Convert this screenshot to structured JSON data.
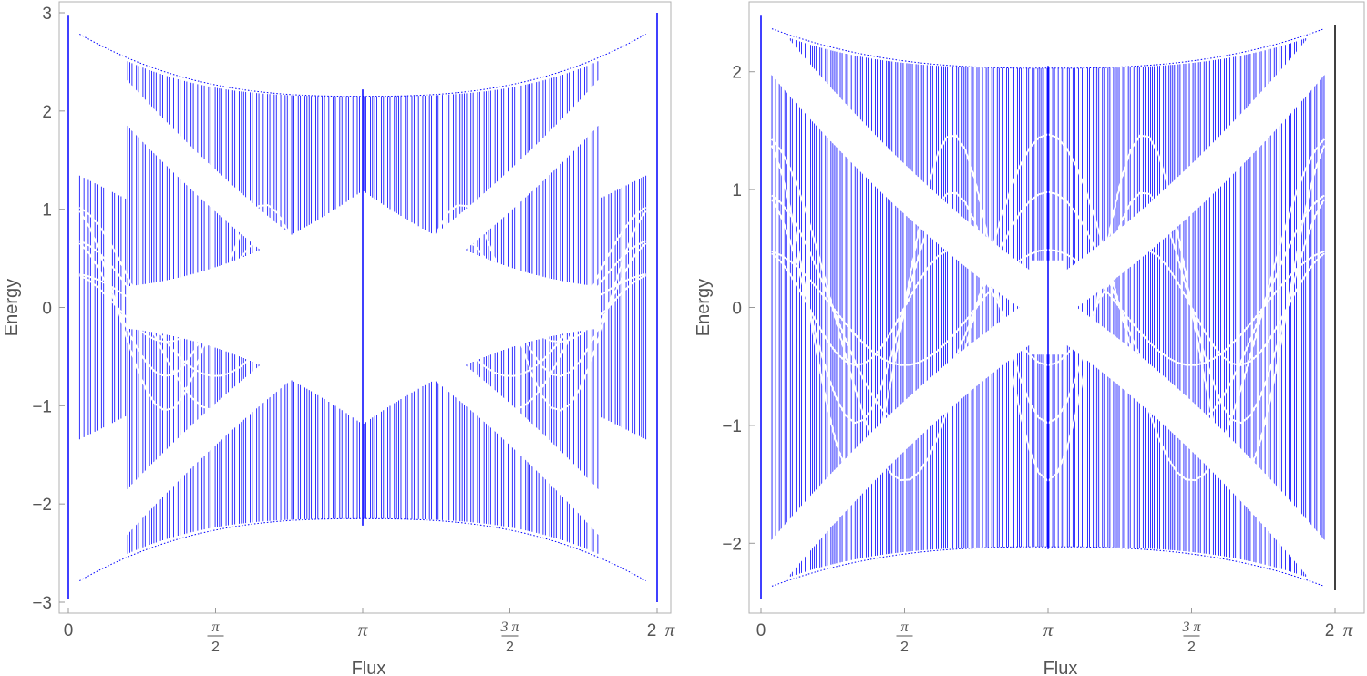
{
  "chart_data": [
    {
      "type": "scatter",
      "panel": "left",
      "title": "",
      "xlabel": "Flux",
      "ylabel": "Energy",
      "xlim": [
        0,
        6.2832
      ],
      "ylim": [
        -3,
        3
      ],
      "xticks": [
        "0",
        "π/2",
        "π",
        "3π/2",
        "2 π"
      ],
      "yticks": [
        "3",
        "2",
        "1",
        "0",
        "−1",
        "−2",
        "−3"
      ],
      "ytick_values": [
        3,
        2,
        1,
        0,
        -1,
        -2,
        -3
      ],
      "series_color": "#0000ff",
      "edge_band_max": 2.85,
      "center_gap_energy": 2.22,
      "description_bands": "Hofstadter-like spectrum with symmetric butterfly bands about Flux = π"
    },
    {
      "type": "scatter",
      "panel": "right",
      "title": "",
      "xlabel": "Flux",
      "ylabel": "Energy",
      "xlim": [
        0,
        6.2832
      ],
      "ylim": [
        -2.5,
        2.5
      ],
      "xticks": [
        "0",
        "π/2",
        "π",
        "3π/2",
        "2 π"
      ],
      "yticks": [
        "2",
        "1",
        "0",
        "−1",
        "−2"
      ],
      "ytick_values": [
        2,
        1,
        0,
        -1,
        -2
      ],
      "series_color": "#0000ff",
      "edge_band_max": 2.4,
      "center_gap_energy": 2.05
    }
  ]
}
